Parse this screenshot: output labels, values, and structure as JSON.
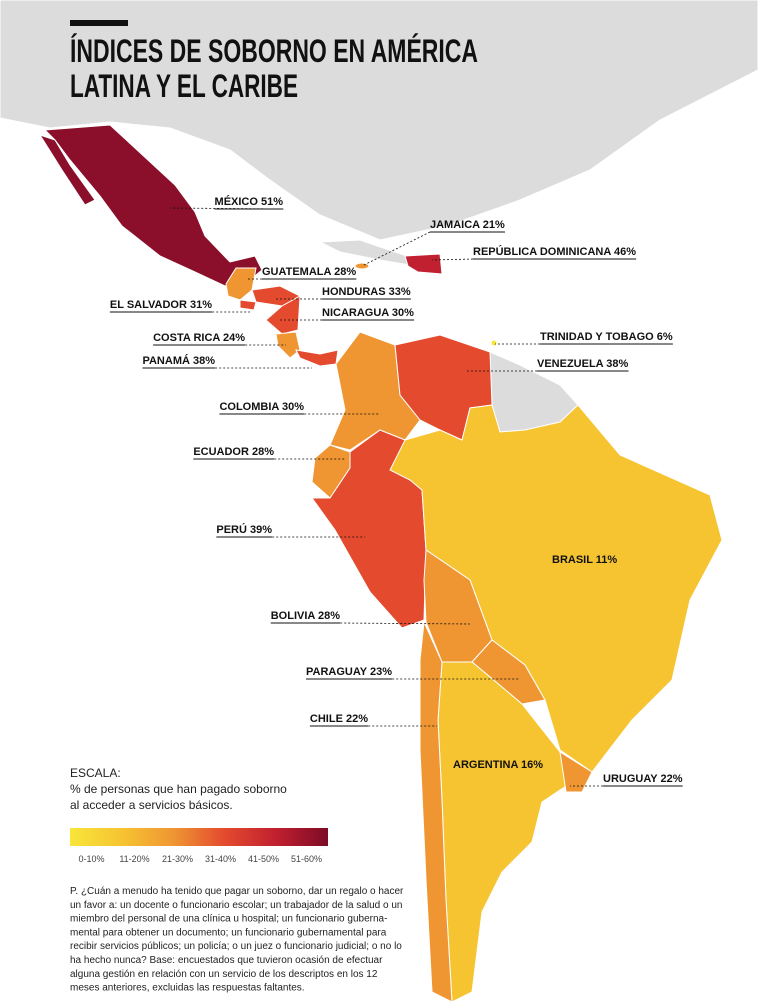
{
  "header": {
    "title_lines": [
      "ÍNDICES DE SOBORNO EN AMÉRICA",
      "LATINA Y EL CARIBE"
    ]
  },
  "countries": [
    {
      "label": "MÉXICO 51%"
    },
    {
      "label": "JAMAICA 21%"
    },
    {
      "label": "REPÚBLICA DOMINICANA 46%"
    },
    {
      "label": "GUATEMALA 28%"
    },
    {
      "label": "HONDURAS 33%"
    },
    {
      "label": "EL SALVADOR 31%"
    },
    {
      "label": "NICARAGUA 30%"
    },
    {
      "label": "TRINIDAD Y TOBAGO 6%"
    },
    {
      "label": "COSTA RICA 24%"
    },
    {
      "label": "PANAMÁ 38%"
    },
    {
      "label": "VENEZUELA 38%"
    },
    {
      "label": "COLOMBIA 30%"
    },
    {
      "label": "ECUADOR 28%"
    },
    {
      "label": "PERÚ 39%"
    },
    {
      "label": "BRASIL 11%"
    },
    {
      "label": "BOLIVIA 28%"
    },
    {
      "label": "PARAGUAY 23%"
    },
    {
      "label": "CHILE 22%"
    },
    {
      "label": "ARGENTINA 16%"
    },
    {
      "label": "URUGUAY 22%"
    }
  ],
  "legend": {
    "heading": "ESCALA:",
    "description_lines": [
      "% de personas que han pagado soborno",
      "al acceder a servicios básicos."
    ],
    "scale_labels": [
      "0-10%",
      "11-20%",
      "21-30%",
      "31-40%",
      "41-50%",
      "51-60%"
    ]
  },
  "footnote": {
    "lines": [
      "P. ¿Cuán a menudo ha tenido que pagar un soborno, dar un regalo o hacer",
      "un favor a: un docente o funcionario escolar; un trabajador de la salud o un",
      "miembro del personal de una clínica u hospital; un funcionario guberna-",
      "mental para obtener un documento; un funcionario gubernamental para",
      "recibir servicios públicos; un policía; o un juez o funcionario judicial; o no lo",
      "ha hecho nunca? Base: encuestados que tuvieron ocasión de efectuar",
      "alguna gestión en relación con un servicio de los descriptos en los 12",
      "meses anteriores, excluidas las respuestas faltantes."
    ]
  }
}
